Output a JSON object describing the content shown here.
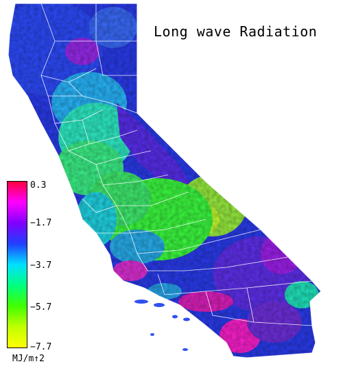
{
  "title": "Long wave Radiation",
  "legend": {
    "unit": "MJ/m↑2",
    "ticks": [
      "0.3",
      "−1.7",
      "−3.7",
      "−5.7",
      "−7.7"
    ],
    "range": [
      -7.7,
      0.3
    ],
    "colors": [
      "#ff0040",
      "#ff00ff",
      "#8000ff",
      "#2040ff",
      "#00e0ff",
      "#00ff80",
      "#40ff00",
      "#c0ff00",
      "#ffff00"
    ]
  }
}
